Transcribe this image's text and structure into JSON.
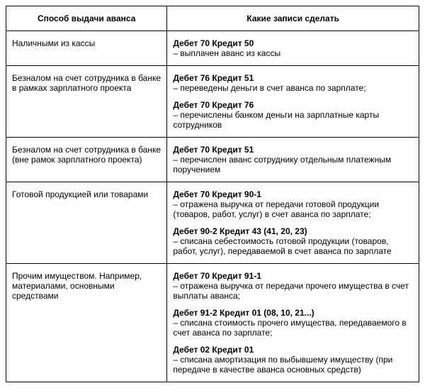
{
  "table": {
    "headers": {
      "method": "Способ выдачи аванса",
      "records": "Какие записи сделать"
    },
    "rows": [
      {
        "method": "Наличными из кассы",
        "entries": [
          {
            "title": "Дебет 70 Кредит 50",
            "desc": "– выплачен аванс из кассы"
          }
        ]
      },
      {
        "method": "Безналом на счет сотрудника в банке в рамках зарплатного проекта",
        "entries": [
          {
            "title": "Дебет 76 Кредит 51",
            "desc": "– переведены деньги в счет аванса по зарплате;"
          },
          {
            "title": "Дебет 70 Кредит 76",
            "desc": "– перечислены банком деньги на зарплатные карты сотрудников"
          }
        ]
      },
      {
        "method": "Безналом на счет сотрудника в банке (вне рамок зарплатного проекта)",
        "entries": [
          {
            "title": "Дебет 70 Кредит 51",
            "desc": "– перечислен аванс сотруднику отдельным платежным поручением"
          }
        ]
      },
      {
        "method": "Готовой продукцией или товарами",
        "entries": [
          {
            "title": "Дебет 70 Кредит 90-1",
            "desc": "– отражена выручка от передачи готовой продукции (товаров, работ, услуг) в счет аванса по зарплате;"
          },
          {
            "title": "Дебет 90-2 Кредит 43 (41, 20, 23)",
            "desc": "– списана себестоимость готовой продукции (товаров, работ, услуг), передаваемой в счет аванса по зарплате"
          }
        ]
      },
      {
        "method": "Прочим имуществом. Например, материалами, основными средствами",
        "entries": [
          {
            "title": "Дебет 70 Кредит 91-1",
            "desc": "– отражена выручка от передачи прочего имущества в счет выплаты аванса;"
          },
          {
            "title": "Дебет 91-2 Кредит 01 (08, 10, 21...)",
            "desc": "– списана стоимость прочего имущества, передаваемого в счет аванса по зарплате;"
          },
          {
            "title": "Дебет 02 Кредит 01",
            "desc": "– списана амортизация по выбывшему имуществу (при передаче в качестве аванса основных средств)"
          }
        ]
      }
    ]
  }
}
